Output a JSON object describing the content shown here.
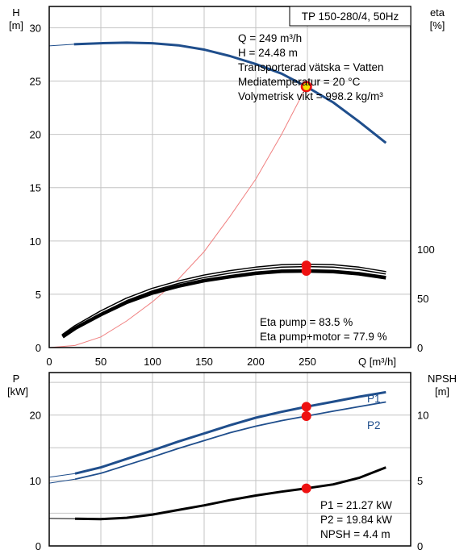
{
  "chart_data": [
    {
      "type": "line",
      "title": "TP 150-280/4, 50Hz",
      "ylabel": "H",
      "ylabel_unit": "[m]",
      "y2label": "eta",
      "y2label_unit": "[%]",
      "xlabel": "Q [m³/h]",
      "xlim": [
        0,
        350
      ],
      "ylim": [
        0,
        32
      ],
      "y2lim": [
        0,
        150
      ],
      "x_ticks": [
        "0",
        "50",
        "100",
        "150",
        "200",
        "250"
      ],
      "y_ticks": [
        "0",
        "5",
        "10",
        "15",
        "20",
        "25",
        "30"
      ],
      "y2_ticks": [
        "0",
        "50",
        "100"
      ],
      "grid": true,
      "info_box": [
        "Q = 249 m³/h",
        "H = 24.48 m",
        "Transporterad vätska = Vatten",
        "Mediatemperatur = 20 °C",
        "Volymetrisk vikt = 998.2 kg/m³"
      ],
      "eta_box": [
        "Eta pump = 83.5 %",
        "Eta pump+motor = 77.9 %"
      ],
      "series": [
        {
          "color": "#1f4e8c",
          "x": [
            0,
            24,
            50,
            75,
            100,
            125,
            150,
            175,
            200,
            225,
            249,
            275,
            300,
            326
          ],
          "values": [
            28.3,
            28.45,
            28.55,
            28.6,
            28.55,
            28.35,
            27.95,
            27.35,
            26.6,
            25.7,
            24.48,
            23.0,
            21.2,
            19.2
          ]
        },
        {
          "color": "#f08080",
          "x": [
            0,
            25,
            50,
            75,
            100,
            125,
            150,
            175,
            200,
            225,
            249
          ],
          "values": [
            0.0,
            0.2,
            1.0,
            2.5,
            4.3,
            6.4,
            9.0,
            12.3,
            15.8,
            20.0,
            24.48
          ]
        },
        {
          "axis": "eta",
          "color": "#000000",
          "x": [
            13,
            25,
            50,
            75,
            100,
            125,
            150,
            175,
            200,
            225,
            249,
            275,
            300,
            326
          ],
          "values": [
            12,
            21,
            36,
            49,
            59,
            66.5,
            72.5,
            77,
            80.5,
            83,
            83.5,
            83,
            80.5,
            76
          ]
        },
        {
          "axis": "eta",
          "color": "#000000",
          "x": [
            13,
            25,
            50,
            75,
            100,
            125,
            150,
            175,
            200,
            225,
            249,
            275,
            300,
            326
          ],
          "values": [
            11,
            19.5,
            33.5,
            46,
            55.5,
            62.5,
            68,
            72,
            75.5,
            77.5,
            77.9,
            77.3,
            75,
            71
          ]
        }
      ],
      "markers": [
        {
          "axis": "H",
          "x": 249,
          "y": 24.48,
          "color": "#f5e000"
        },
        {
          "axis": "eta",
          "x": 249,
          "y": 83.5,
          "color": "#ee1111"
        },
        {
          "axis": "eta",
          "x": 249,
          "y": 77.9,
          "color": "#ee1111"
        }
      ]
    },
    {
      "type": "line",
      "ylabel": "P",
      "ylabel_unit": "[kW]",
      "y2label": "NPSH",
      "y2label_unit": "[m]",
      "xlim": [
        0,
        350
      ],
      "ylim": [
        0,
        26.5
      ],
      "y2lim": [
        0,
        13.25
      ],
      "y_ticks": [
        "0",
        "10",
        "20"
      ],
      "y2_ticks": [
        "0",
        "5",
        "10"
      ],
      "grid": true,
      "info_box": [
        "P1 = 21.27 kW",
        "P2 = 19.84 kW",
        "NPSH = 4.4 m"
      ],
      "series": [
        {
          "name": "P1",
          "color": "#1f4e8c",
          "x": [
            0,
            25,
            50,
            75,
            100,
            125,
            150,
            175,
            200,
            225,
            249,
            275,
            300,
            326
          ],
          "values": [
            10.5,
            11.05,
            12.0,
            13.3,
            14.6,
            15.95,
            17.2,
            18.45,
            19.6,
            20.5,
            21.27,
            22.05,
            22.8,
            23.5
          ]
        },
        {
          "name": "P2",
          "color": "#1f4e8c",
          "x": [
            0,
            25,
            50,
            75,
            100,
            125,
            150,
            175,
            200,
            225,
            249,
            275,
            300,
            326
          ],
          "values": [
            9.6,
            10.2,
            11.1,
            12.35,
            13.6,
            14.9,
            16.1,
            17.3,
            18.3,
            19.15,
            19.84,
            20.6,
            21.3,
            22.0
          ]
        },
        {
          "axis": "npsh",
          "color": "#000000",
          "x": [
            0,
            25,
            50,
            75,
            100,
            125,
            150,
            175,
            200,
            225,
            249,
            275,
            300,
            326
          ],
          "values": [
            2.1,
            2.08,
            2.05,
            2.15,
            2.4,
            2.75,
            3.1,
            3.5,
            3.85,
            4.15,
            4.4,
            4.7,
            5.2,
            6.0
          ]
        }
      ],
      "markers": [
        {
          "axis": "P",
          "x": 249,
          "y": 21.27,
          "color": "#ee1111"
        },
        {
          "axis": "P",
          "x": 249,
          "y": 19.84,
          "color": "#ee1111"
        },
        {
          "axis": "npsh",
          "x": 249,
          "y": 4.4,
          "color": "#ee1111"
        }
      ]
    }
  ]
}
